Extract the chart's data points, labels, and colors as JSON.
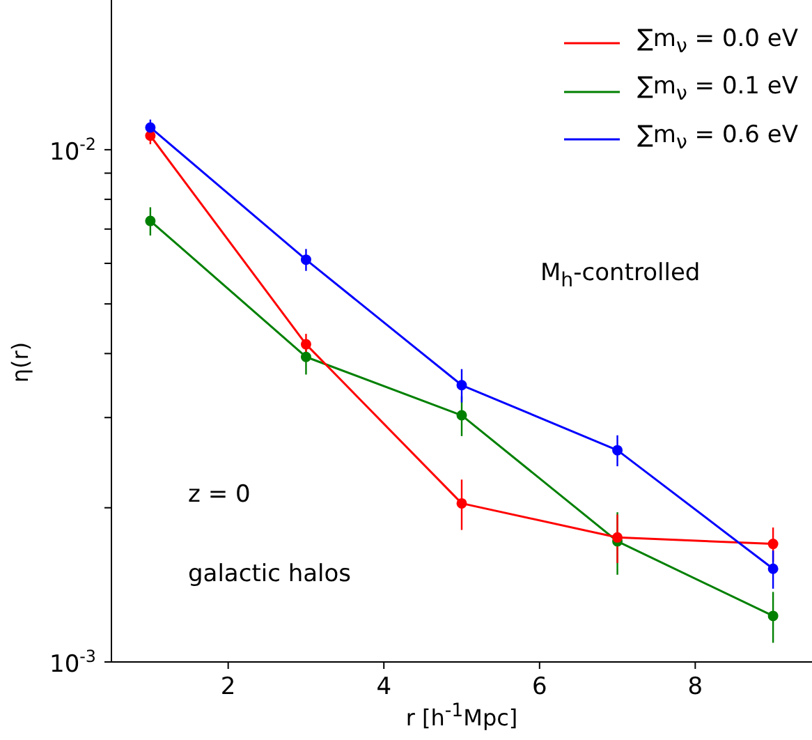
{
  "chart_data": {
    "type": "line",
    "xlabel": "r [h$^{-1}$Mpc]",
    "ylabel": "η(r)",
    "x": [
      1,
      3,
      5,
      7,
      9
    ],
    "series": [
      {
        "name": "∑m$_{ν}$ = 0.0 eV",
        "color": "#ff0000",
        "values": [
          0.01065,
          0.00417,
          0.00204,
          0.00175,
          0.0017
        ],
        "errors": [
          0.0004,
          0.0002,
          0.00023,
          0.00019,
          0.00013
        ]
      },
      {
        "name": "∑m$_{ν}$ = 0.1 eV",
        "color": "#008000",
        "values": [
          0.00726,
          0.00394,
          0.00303,
          0.00172,
          0.00123
        ],
        "errors": [
          0.00046,
          0.0003,
          0.00027,
          0.00024,
          0.00014
        ]
      },
      {
        "name": "∑m$_{ν}$ = 0.6 eV",
        "color": "#0000ff",
        "values": [
          0.01105,
          0.0061,
          0.00347,
          0.00259,
          0.00152
        ],
        "errors": [
          0.0004,
          0.0003,
          0.00026,
          0.00018,
          0.00013
        ]
      }
    ],
    "xlim": [
      0.5,
      9.5
    ],
    "xticks": [
      2,
      4,
      6,
      8
    ],
    "log": "y",
    "ylim": [
      0.001,
      0.0196
    ],
    "yticks": [
      {
        "value": 0.001,
        "label": "10$^{-3}$"
      },
      {
        "value": 0.002,
        "label": null
      },
      {
        "value": 0.003,
        "label": null
      },
      {
        "value": 0.004,
        "label": null
      },
      {
        "value": 0.005,
        "label": null
      },
      {
        "value": 0.006,
        "label": null
      },
      {
        "value": 0.007,
        "label": null
      },
      {
        "value": 0.008,
        "label": null
      },
      {
        "value": 0.009,
        "label": null
      },
      {
        "value": 0.01,
        "label": "10$^{-2}$"
      }
    ],
    "annotations": [
      "M$_{h}$-controlled",
      "z = 0",
      "galactic halos"
    ],
    "legend": "top right",
    "marker": "circle",
    "line_style": "solid",
    "grid": false
  }
}
